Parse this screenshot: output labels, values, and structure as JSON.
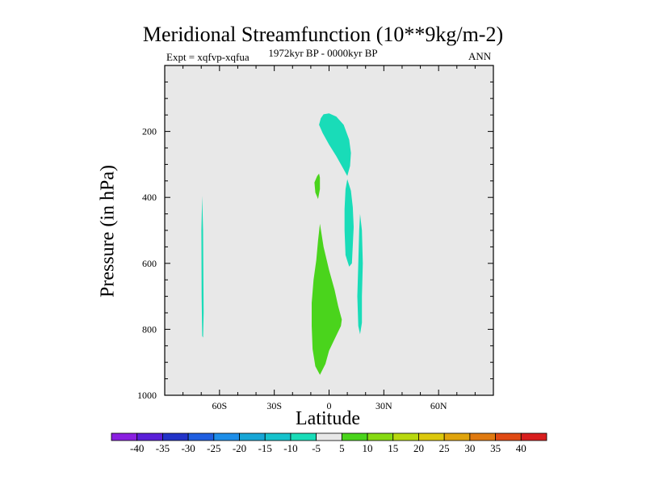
{
  "chart_data": {
    "type": "contour",
    "title": "Meridional Streamfunction (10**9kg/m-2)",
    "subtitle": "1972kyr BP - 0000kyr BP",
    "left_label": "Expt = xqfvp-xqfua",
    "right_label": "ANN",
    "xlabel": "Latitude",
    "ylabel": "Pressure (in hPa)",
    "xlim": [
      -90,
      90
    ],
    "ylim": [
      1000,
      0
    ],
    "x_ticks": [
      {
        "value": -60,
        "label": "60S"
      },
      {
        "value": -30,
        "label": "30S"
      },
      {
        "value": 0,
        "label": "0"
      },
      {
        "value": 30,
        "label": "30N"
      },
      {
        "value": 60,
        "label": "60N"
      }
    ],
    "y_ticks": [
      200,
      400,
      600,
      800,
      1000
    ],
    "background_color": "#e8e8e8",
    "colorbar": {
      "labels": [
        "-40",
        "-35",
        "-30",
        "-25",
        "-20",
        "-15",
        "-10",
        "-5",
        "5",
        "10",
        "15",
        "20",
        "25",
        "30",
        "35",
        "40"
      ],
      "colors": [
        "#8a20e0",
        "#5a1fd8",
        "#2233c8",
        "#1f5ee0",
        "#1e8ee8",
        "#17a6d6",
        "#16c2cc",
        "#19dcb8",
        "#e8e8e8",
        "#4ad41c",
        "#86da12",
        "#b8d80e",
        "#dcc80c",
        "#e0a40c",
        "#e07a10",
        "#e04a14",
        "#d81e1e"
      ]
    },
    "regions": [
      {
        "name": "negative-region-high-upper",
        "level": -5,
        "color": "#19dcb8",
        "points": [
          [
            -4.5,
            160
          ],
          [
            -3,
            148
          ],
          [
            0,
            145
          ],
          [
            4,
            155
          ],
          [
            8,
            180
          ],
          [
            11,
            225
          ],
          [
            12,
            265
          ],
          [
            11.5,
            305
          ],
          [
            10,
            335
          ],
          [
            8,
            315
          ],
          [
            4,
            275
          ],
          [
            0,
            240
          ],
          [
            -3.5,
            205
          ],
          [
            -5.5,
            180
          ]
        ]
      },
      {
        "name": "negative-region-high-lower",
        "level": -5,
        "color": "#19dcb8",
        "points": [
          [
            10,
            345
          ],
          [
            12,
            380
          ],
          [
            13,
            430
          ],
          [
            13.5,
            490
          ],
          [
            13,
            545
          ],
          [
            12.5,
            600
          ],
          [
            11,
            610
          ],
          [
            9,
            575
          ],
          [
            8.5,
            500
          ],
          [
            8.5,
            435
          ],
          [
            9,
            375
          ]
        ]
      },
      {
        "name": "negative-region-right-thin",
        "level": -5,
        "color": "#19dcb8",
        "points": [
          [
            17,
            450
          ],
          [
            18,
            500
          ],
          [
            18.5,
            600
          ],
          [
            18,
            700
          ],
          [
            18,
            780
          ],
          [
            17,
            815
          ],
          [
            16,
            790
          ],
          [
            15.5,
            700
          ],
          [
            16,
            600
          ],
          [
            16.5,
            500
          ]
        ]
      },
      {
        "name": "negative-region-left-thin",
        "level": -5,
        "color": "#19dcb8",
        "points": [
          [
            -69.5,
            395
          ],
          [
            -69,
            500
          ],
          [
            -68.8,
            650
          ],
          [
            -68.7,
            750
          ],
          [
            -69,
            825
          ],
          [
            -69.5,
            820
          ],
          [
            -69.8,
            700
          ],
          [
            -69.9,
            500
          ]
        ]
      },
      {
        "name": "positive-region-upper",
        "level": 5,
        "color": "#4ad41c",
        "points": [
          [
            -6.5,
            335
          ],
          [
            -5.5,
            328
          ],
          [
            -5,
            340
          ],
          [
            -5,
            375
          ],
          [
            -6,
            405
          ],
          [
            -7.5,
            385
          ],
          [
            -8,
            355
          ]
        ]
      },
      {
        "name": "positive-region-lower",
        "level": 5,
        "color": "#4ad41c",
        "points": [
          [
            -5,
            480
          ],
          [
            -3,
            550
          ],
          [
            0,
            620
          ],
          [
            3,
            680
          ],
          [
            5,
            730
          ],
          [
            7,
            770
          ],
          [
            6.5,
            790
          ],
          [
            3,
            830
          ],
          [
            0,
            865
          ],
          [
            -2,
            905
          ],
          [
            -5,
            938
          ],
          [
            -7.5,
            912
          ],
          [
            -9,
            860
          ],
          [
            -9.5,
            790
          ],
          [
            -9.5,
            720
          ],
          [
            -8.5,
            650
          ],
          [
            -7,
            590
          ],
          [
            -6,
            530
          ]
        ]
      }
    ]
  }
}
